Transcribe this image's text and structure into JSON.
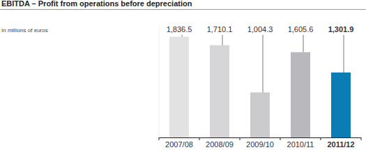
{
  "chart_data": {
    "type": "bar",
    "title": "EBITDA – Profit from operations before depreciation",
    "subtitle": "In millions of euros",
    "categories": [
      "2007/08",
      "2008/09",
      "2009/10",
      "2010/11",
      "2011/12"
    ],
    "values": [
      1836.5,
      1710.1,
      1004.3,
      1605.6,
      1301.9
    ],
    "value_labels": [
      "1,836.5",
      "1,710.1",
      "1,004.3",
      "1,605.6",
      "1,301.9"
    ],
    "colors": [
      "#e2e2e3",
      "#d6d6d8",
      "#cbcbcd",
      "#b9b9bd",
      "#0b7db4"
    ],
    "ylim": [
      330,
      2000
    ],
    "data_labels": true,
    "tick_labels": "x"
  }
}
